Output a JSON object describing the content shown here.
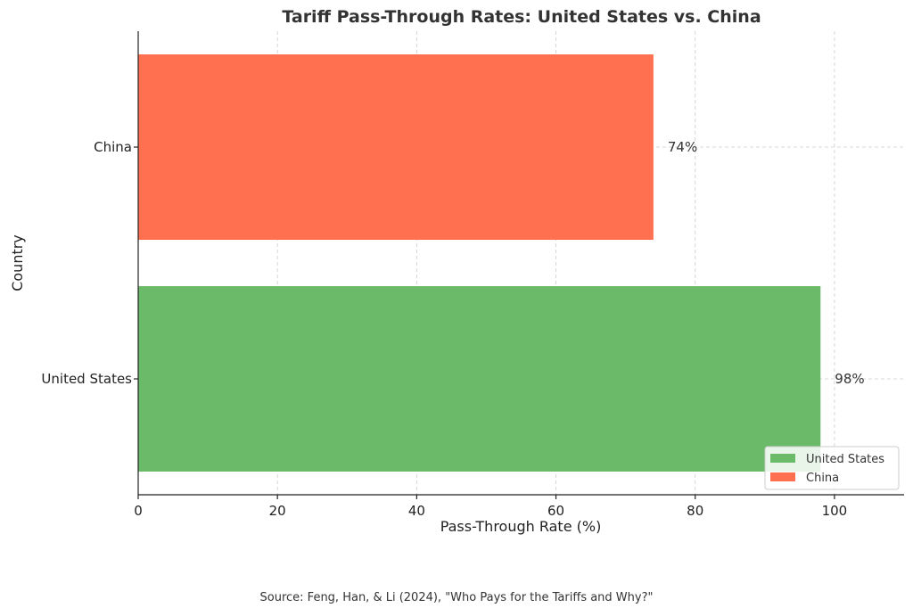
{
  "chart_data": {
    "type": "bar",
    "orientation": "horizontal",
    "title": "Tariff Pass-Through Rates: United States vs. China",
    "xlabel": "Pass-Through Rate (%)",
    "ylabel": "Country",
    "xlim": [
      0,
      110
    ],
    "xticks": [
      0,
      20,
      40,
      60,
      80,
      100
    ],
    "grid": true,
    "legend_position": "bottom-right",
    "categories": [
      "United States",
      "China"
    ],
    "values": [
      98,
      74
    ],
    "value_labels": [
      "98%",
      "74%"
    ],
    "colors": [
      "#6aba6a",
      "#ff7050"
    ],
    "legend": [
      {
        "label": "United States",
        "color": "#6aba6a"
      },
      {
        "label": "China",
        "color": "#ff7050"
      }
    ]
  },
  "source": "Source: Feng, Han, & Li (2024), \"Who Pays for the Tariffs and Why?\""
}
